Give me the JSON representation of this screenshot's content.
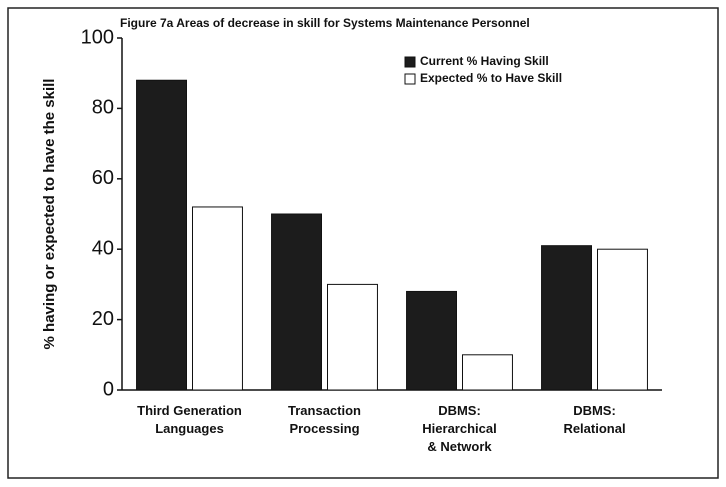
{
  "chart_data": {
    "type": "bar",
    "title": "Figure 7a Areas of decrease in skill for Systems Maintenance Personnel",
    "ylabel": "% having or expected to have the skill",
    "categories": [
      "Third Generation\nLanguages",
      "Transaction\nProcessing",
      "DBMS:\nHierarchical\n& Network",
      "DBMS:\nRelational"
    ],
    "series": [
      {
        "name": "Current % Having Skill",
        "color": "#1c1c1c",
        "values": [
          88,
          50,
          28,
          41
        ]
      },
      {
        "name": "Expected % to Have Skill",
        "color": "#ffffff",
        "values": [
          52,
          30,
          10,
          40
        ]
      }
    ],
    "ylim": [
      0,
      100
    ],
    "yticks": [
      0,
      20,
      40,
      60,
      80,
      100
    ],
    "legend": "upper right"
  }
}
